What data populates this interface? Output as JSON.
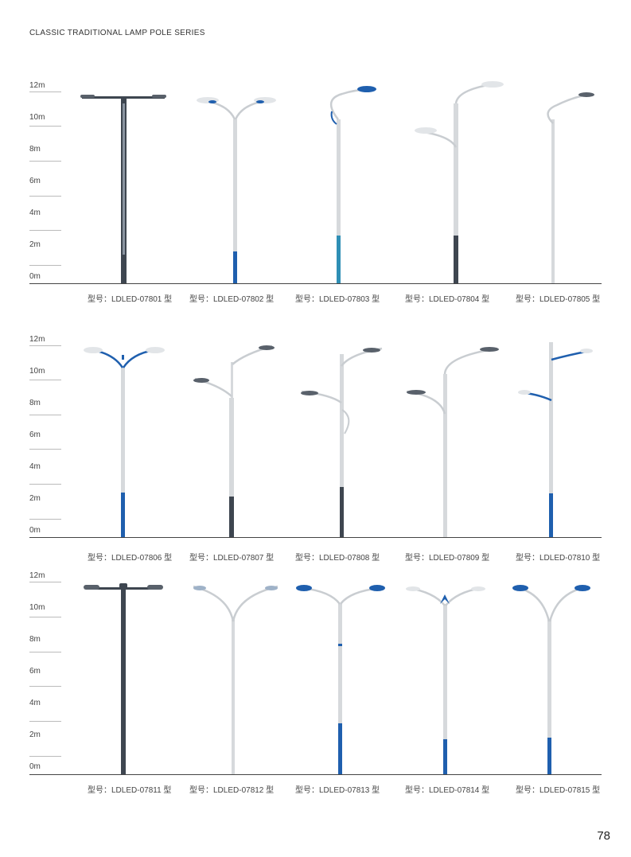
{
  "series_title": "CLASSIC TRADITIONAL LAMP POLE SERIES",
  "page_number": "78",
  "scale_labels": [
    "12m",
    "10m",
    "8m",
    "6m",
    "4m",
    "2m",
    "0m"
  ],
  "rows": [
    {
      "models": [
        "型号：LDLED-07801 型",
        "型号：LDLED-07802 型",
        "型号：LDLED-07803 型",
        "型号：LDLED-07804 型",
        "型号：LDLED-07805 型"
      ]
    },
    {
      "models": [
        "型号：LDLED-07806 型",
        "型号：LDLED-07807 型",
        "型号：LDLED-07808 型",
        "型号：LDLED-07809 型",
        "型号：LDLED-07810 型"
      ]
    },
    {
      "models": [
        "型号：LDLED-07811 型",
        "型号：LDLED-07812 型",
        "型号：LDLED-07813 型",
        "型号：LDLED-07814 型",
        "型号：LDLED-07815 型"
      ]
    }
  ],
  "colors": {
    "pole_grey": "#d6d9dc",
    "pole_dark": "#3e4650",
    "accent_blue": "#1f5fae"
  }
}
